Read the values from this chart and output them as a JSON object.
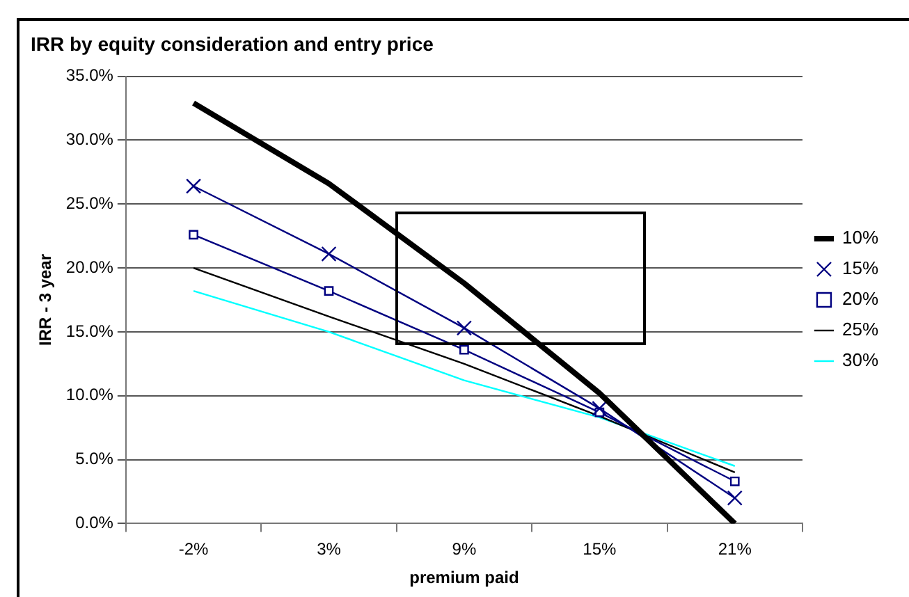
{
  "chart_data": {
    "type": "line",
    "title": "IRR by equity consideration and entry price",
    "xlabel": "premium paid",
    "ylabel": "IRR - 3 year",
    "categories": [
      "-2%",
      "3%",
      "9%",
      "15%",
      "21%"
    ],
    "series": [
      {
        "name": "10%",
        "color": "#000000",
        "marker": "none",
        "values": [
          32.9,
          26.6,
          18.8,
          10.2,
          0
        ]
      },
      {
        "name": "15%",
        "color": "#000080",
        "marker": "cross",
        "values": [
          26.4,
          21.1,
          15.3,
          9.0,
          2.0
        ]
      },
      {
        "name": "20%",
        "color": "#000080",
        "marker": "square",
        "values": [
          22.6,
          18.2,
          13.6,
          8.7,
          3.3
        ]
      },
      {
        "name": "25%",
        "color": "#000000",
        "marker": "none",
        "values": [
          20.0,
          16.2,
          12.5,
          8.4,
          4.0
        ]
      },
      {
        "name": "30%",
        "color": "#00ffff",
        "marker": "none",
        "values": [
          18.2,
          15.0,
          11.2,
          8.3,
          4.5
        ]
      }
    ],
    "ylim": [
      0,
      35
    ],
    "yticks": [
      {
        "value": 0,
        "label": "0.0%"
      },
      {
        "value": 5,
        "label": "5.0%"
      },
      {
        "value": 10,
        "label": "10.0%"
      },
      {
        "value": 15,
        "label": "15.0%"
      },
      {
        "value": 20,
        "label": "20.0%"
      },
      {
        "value": 25,
        "label": "25.0%"
      },
      {
        "value": 30,
        "label": "30.0%"
      },
      {
        "value": 35,
        "label": "35.0%"
      }
    ],
    "grid": "y",
    "legend": "right",
    "line_style": "solid"
  }
}
